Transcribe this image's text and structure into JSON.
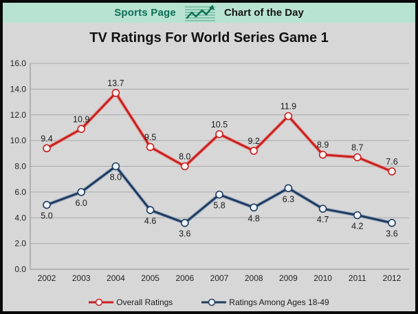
{
  "header": {
    "brand": "Sports Page",
    "title": "Chart of the Day",
    "icon": "line-chart-icon"
  },
  "chart_data": {
    "type": "line",
    "title": "TV Ratings For World Series Game 1",
    "categories": [
      "2002",
      "2003",
      "2004",
      "2005",
      "2006",
      "2007",
      "2008",
      "2009",
      "2010",
      "2011",
      "2012"
    ],
    "series": [
      {
        "name": "Overall Ratings",
        "color": "#c71f1f",
        "halo_color": "#e5958f",
        "marker_fill": "#fdf4f2",
        "label_position": "above",
        "values": [
          9.4,
          10.9,
          13.7,
          9.5,
          8.0,
          10.5,
          9.2,
          11.9,
          8.9,
          8.7,
          7.6
        ]
      },
      {
        "name": "Ratings Among Ages 18-49",
        "color": "#1e3a5e",
        "halo_color": "#93a6c2",
        "marker_fill": "#eef3fa",
        "label_position": "below",
        "values": [
          5.0,
          6.0,
          8.0,
          4.6,
          3.6,
          5.8,
          4.8,
          6.3,
          4.7,
          4.2,
          3.6
        ]
      }
    ],
    "ylim": [
      0,
      16
    ],
    "ytick_step": 2,
    "ytick_labels": [
      "0.0",
      "2.0",
      "4.0",
      "6.0",
      "8.0",
      "10.0",
      "12.0",
      "14.0",
      "16.0"
    ],
    "data_labels": true,
    "grid": true,
    "legend_position": "bottom"
  },
  "colors": {
    "page_background": "#d7d7d7",
    "masthead_background": "#b8e3d2",
    "brand_green": "#0d6e55",
    "gridline": "#a8a8a8",
    "axis": "#8a8a8a",
    "frame_border": "#0a0a0a"
  }
}
